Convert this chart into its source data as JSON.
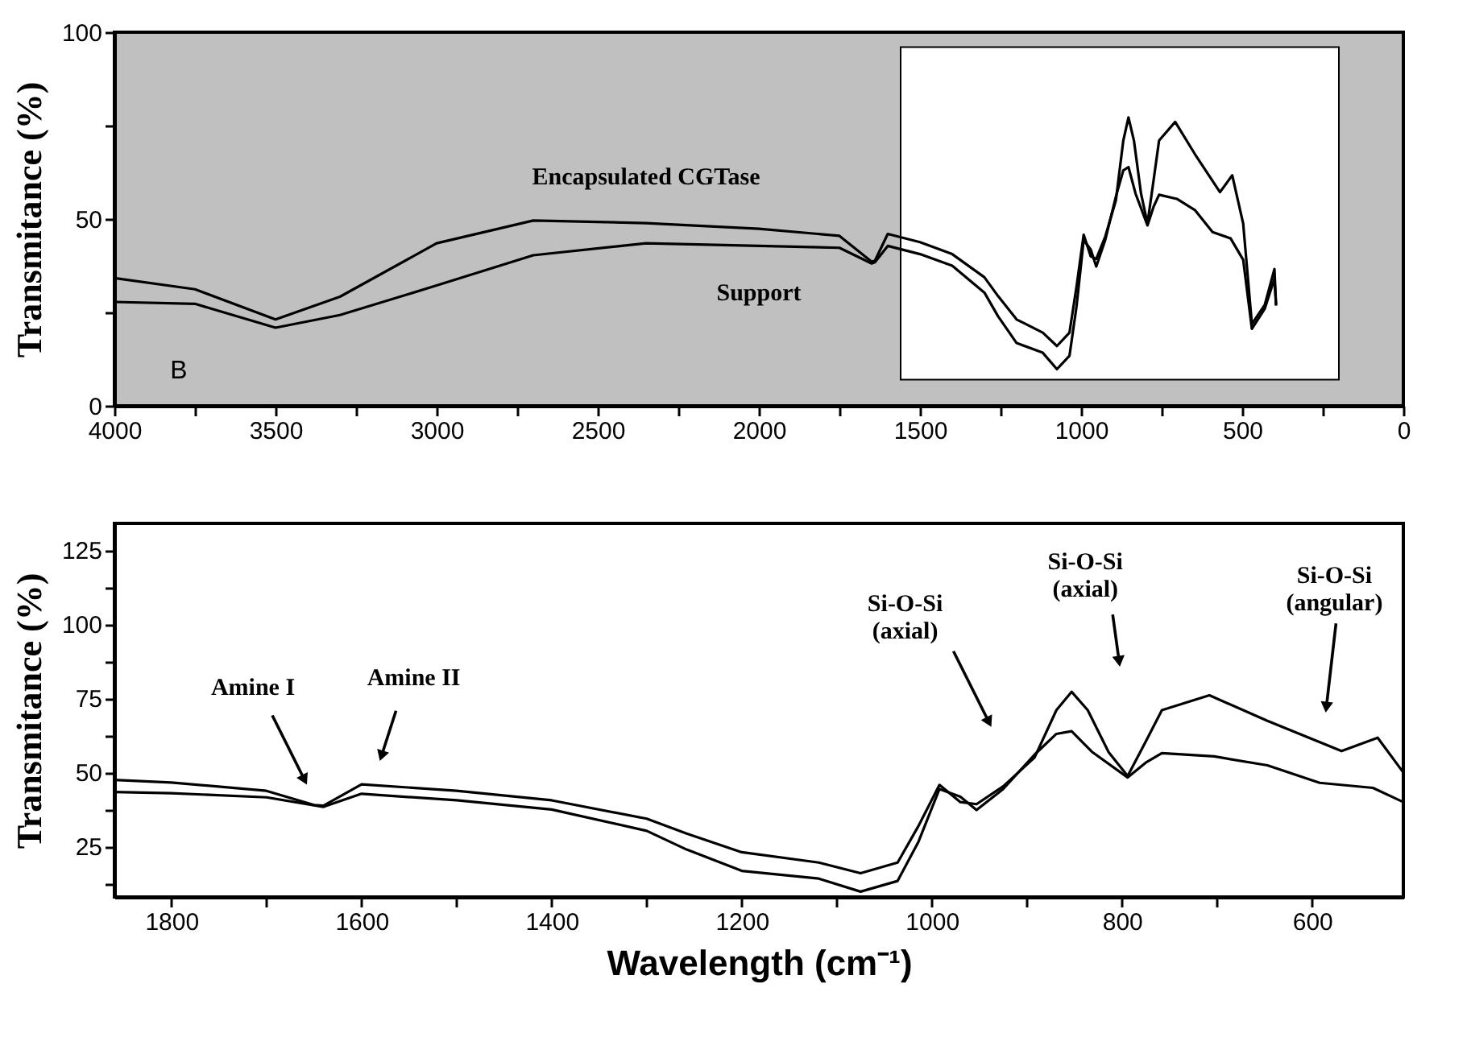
{
  "chart_data": [
    {
      "type": "line",
      "ylabel": "Transmitance (%)",
      "xlim": [
        4000,
        0
      ],
      "ylim": [
        0,
        100
      ],
      "xticks": [
        4000,
        {
          "value": 3750,
          "label": null
        },
        3500,
        {
          "value": 3250,
          "label": null
        },
        3000,
        {
          "value": 2750,
          "label": null
        },
        2500,
        {
          "value": 2250,
          "label": null
        },
        2000,
        {
          "value": 1750,
          "label": null
        },
        1500,
        {
          "value": 1250,
          "label": null
        },
        1000,
        {
          "value": 750,
          "label": null
        },
        500,
        {
          "value": 250,
          "label": null
        },
        0
      ],
      "yticks": [
        0,
        {
          "value": 25,
          "label": null
        },
        50,
        {
          "value": 75,
          "label": null
        },
        100
      ],
      "bands": [
        {
          "axis": "x",
          "from": 1560,
          "to": 200,
          "color": "#ffffff"
        }
      ],
      "annotations": [
        "B"
      ],
      "series": [
        {
          "name": "Encapsulated CGTase",
          "color": "#000000",
          "x": [
            4000,
            3750,
            3500,
            3300,
            3000,
            2700,
            2350,
            2000,
            1750,
            1650,
            1640,
            1600,
            1500,
            1400,
            1300,
            1258,
            1200,
            1119,
            1075,
            1036,
            1014,
            992,
            970,
            953,
            925,
            892,
            869,
            853,
            836,
            814,
            794,
            775,
            758,
            708,
            647,
            569,
            531,
            497,
            470,
            430,
            400,
            395
          ],
          "values": [
            34.2,
            31.2,
            23.1,
            29.2,
            43.5,
            49.6,
            48.9,
            47.4,
            45.5,
            38.6,
            38.8,
            46,
            43.8,
            40.6,
            34.4,
            29.4,
            23.1,
            19.6,
            16,
            19.6,
            32,
            45.8,
            40,
            39.3,
            45.3,
            55,
            71,
            77.2,
            71,
            56.8,
            48.8,
            60.4,
            71,
            76,
            67.4,
            57.2,
            61.7,
            48.8,
            21.9,
            27,
            36.6,
            26.8
          ]
        },
        {
          "name": "Support",
          "color": "#000000",
          "x": [
            4000,
            3750,
            3500,
            3300,
            3000,
            2700,
            2350,
            2000,
            1750,
            1650,
            1640,
            1600,
            1500,
            1400,
            1300,
            1258,
            1200,
            1119,
            1075,
            1036,
            1014,
            992,
            970,
            953,
            925,
            892,
            869,
            853,
            831,
            794,
            775,
            758,
            703,
            647,
            592,
            536,
            497,
            470,
            430,
            400,
            395
          ],
          "values": [
            27.8,
            27.3,
            20.9,
            24.3,
            32.2,
            40.3,
            43.5,
            42.8,
            42.3,
            38.1,
            38.4,
            42.8,
            40.6,
            37.5,
            30.3,
            24,
            16.8,
            14.2,
            9.8,
            13.4,
            26.7,
            44.4,
            41.8,
            37.3,
            44.4,
            56,
            63,
            63.9,
            56.8,
            48.3,
            53.3,
            56.5,
            55.4,
            52.4,
            46.5,
            44.8,
            39.1,
            20.6,
            26,
            34,
            27
          ]
        }
      ]
    },
    {
      "type": "line",
      "xlabel": "Wavelength (cm⁻¹)",
      "ylabel": "Transmitance (%)",
      "xlim": [
        1860,
        504
      ],
      "ylim": [
        8,
        134
      ],
      "xticks": [
        1800,
        {
          "value": 1700,
          "label": null
        },
        1600,
        {
          "value": 1500,
          "label": null
        },
        1400,
        {
          "value": 1300,
          "label": null
        },
        1200,
        {
          "value": 1100,
          "label": null
        },
        1000,
        {
          "value": 900,
          "label": null
        },
        800,
        {
          "value": 700,
          "label": null
        },
        600
      ],
      "yticks": [
        {
          "value": 12.5,
          "label": null
        },
        25,
        {
          "value": 37.5,
          "label": null
        },
        50,
        {
          "value": 62.5,
          "label": null
        },
        75,
        {
          "value": 87.5,
          "label": null
        },
        100,
        {
          "value": 112.5,
          "label": null
        },
        125
      ],
      "annotations": [
        {
          "text": "Amine I",
          "x": 1660,
          "y": 47.5
        },
        {
          "text": "Amine II",
          "x": 1579,
          "y": 55.6
        },
        {
          "text": "Si-O-Si\n(axial)",
          "x": 940,
          "y": 67
        },
        {
          "text": "Si-O-Si\n(axial)",
          "x": 803,
          "y": 87.5
        },
        {
          "text": "Si-O-Si\n(angular)",
          "x": 585,
          "y": 72
        }
      ],
      "series": [
        {
          "color": "#000000",
          "x": [
            1860,
            1800,
            1700,
            1650,
            1640,
            1600,
            1500,
            1400,
            1300,
            1258,
            1200,
            1119,
            1075,
            1036,
            1014,
            992,
            970,
            953,
            925,
            892,
            869,
            853,
            836,
            814,
            794,
            775,
            758,
            708,
            647,
            569,
            531,
            504
          ],
          "values": [
            47.5,
            46.6,
            43.8,
            39,
            38.8,
            46,
            43.8,
            40.6,
            34.4,
            29.4,
            23.1,
            19.6,
            16,
            19.6,
            32,
            45.8,
            40,
            39.3,
            45.3,
            55,
            71,
            77.2,
            71,
            56.8,
            48.8,
            60.4,
            71,
            76,
            67.4,
            57.2,
            61.7,
            50
          ]
        },
        {
          "color": "#000000",
          "x": [
            1860,
            1800,
            1700,
            1640,
            1600,
            1500,
            1400,
            1300,
            1258,
            1200,
            1119,
            1075,
            1036,
            1014,
            992,
            970,
            953,
            925,
            892,
            869,
            853,
            831,
            794,
            775,
            758,
            703,
            647,
            592,
            536,
            504
          ],
          "values": [
            43.4,
            43,
            41.6,
            38.4,
            42.8,
            40.6,
            37.5,
            30.3,
            24,
            16.8,
            14.2,
            9.8,
            13.4,
            26.7,
            44.4,
            41.8,
            37.3,
            44.4,
            56,
            63,
            63.9,
            56.8,
            48.3,
            53.3,
            56.5,
            55.4,
            52.4,
            46.5,
            44.8,
            40
          ]
        }
      ]
    }
  ]
}
